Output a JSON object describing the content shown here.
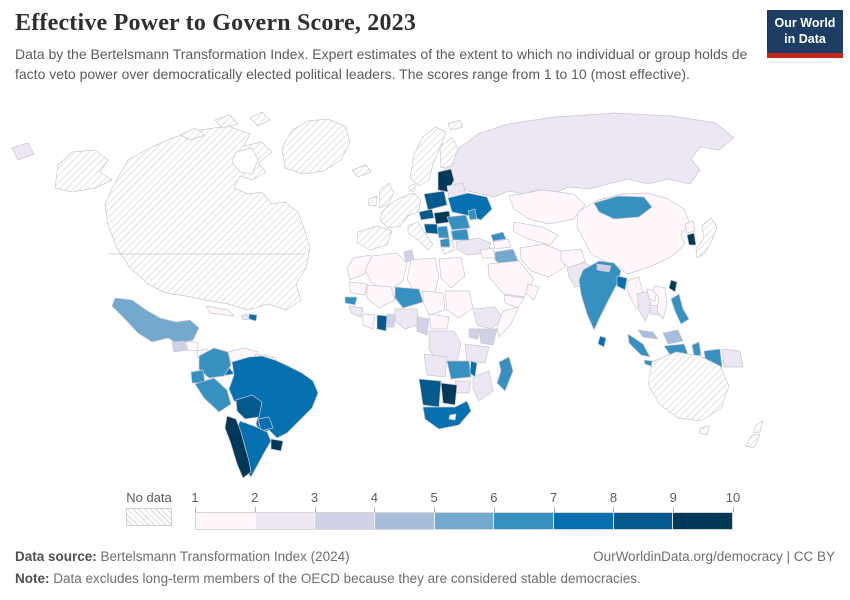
{
  "header": {
    "title": "Effective Power to Govern Score, 2023",
    "subtitle": "Data by the Bertelsmann Transformation Index. Expert estimates of the extent to which no individual or group holds de facto veto power over democratically elected political leaders. The scores range from 1 to 10 (most effective).",
    "logo": {
      "line1": "Our World",
      "line2": "in Data",
      "bg_color": "#1d3d63",
      "accent_color": "#c5261f"
    }
  },
  "legend": {
    "no_data_label": "No data"
  },
  "footer": {
    "source_label": "Data source:",
    "source_text": " Bertelsmann Transformation Index (2024)",
    "right_text": "OurWorldinData.org/democracy | CC BY",
    "note_label": "Note:",
    "note_text": " Data excludes long-term members of the OECD because they are considered stable democracies."
  },
  "chart_data": {
    "type": "choropleth_map",
    "title": "Effective Power to Govern Score",
    "year": 2023,
    "unit": "score (1 to 10, most effective)",
    "scale": {
      "ticks": [
        "1",
        "2",
        "3",
        "4",
        "5",
        "6",
        "7",
        "8",
        "9",
        "10"
      ],
      "no_data_label": "No data",
      "bins": [
        {
          "range": "1-2",
          "color": "#fff7fb"
        },
        {
          "range": "2-3",
          "color": "#ece7f2"
        },
        {
          "range": "3-4",
          "color": "#d0d1e6"
        },
        {
          "range": "4-5",
          "color": "#a6bddb"
        },
        {
          "range": "5-6",
          "color": "#74a9cf"
        },
        {
          "range": "6-7",
          "color": "#3690c0"
        },
        {
          "range": "7-8",
          "color": "#0570b0"
        },
        {
          "range": "8-9",
          "color": "#045a8d"
        },
        {
          "range": "9-10",
          "color": "#023858"
        }
      ],
      "border_color": "#c9c7d1",
      "hatch_color": "#d9d9de"
    },
    "countries": {
      "canada-usa": "no-data",
      "alaska": "no-data",
      "arctic-islands": "no-data",
      "greenland": "no-data",
      "iceland": "no-data",
      "svalbard": "no-data",
      "uk": "no-data",
      "ireland": "no-data",
      "scandinavia": "no-data",
      "finland": "no-data",
      "denmark": "no-data",
      "western-europe": "no-data",
      "iberia": "no-data",
      "italy": "no-data",
      "greece": "no-data",
      "japan": "no-data",
      "australia": "no-data",
      "new-zealand": "no-data",
      "suriname-guiana": "no-data",
      "mexico": "5-6",
      "guatemala": "3-4",
      "honduras": "1-2",
      "nicaragua": "1-2",
      "costa-rica": "9-10",
      "panama": "7-8",
      "cuba": "1-2",
      "haiti": "2-3",
      "dominican-republic": "7-8",
      "colombia": "6-7",
      "venezuela": "1-2",
      "guyana": "1-2",
      "ecuador": "6-7",
      "peru": "6-7",
      "brazil": "7-8",
      "bolivia": "8-9",
      "paraguay": "7-8",
      "chile": "9-10",
      "argentina": "7-8",
      "uruguay": "9-10",
      "baltics": "9-10",
      "poland": "8-9",
      "belarus": "2-3",
      "ukraine": "7-8",
      "czechia": "8-9",
      "slovakia-hungary": "9-10",
      "slovenia-croatia": "8-9",
      "serbia-bosnia": "6-7",
      "albania-macedonia": "6-7",
      "romania": "6-7",
      "bulgaria": "6-7",
      "moldova": "6-7",
      "turkey": "2-3",
      "georgia": "6-7",
      "armenia-azerbaijan": "1-2",
      "russia": "2-3",
      "russia-far-east": "2-3",
      "kazakhstan": "1-2",
      "uzbekistan-turkmenistan": "1-2",
      "syria": "1-2",
      "iraq": "5-6",
      "iran": "1-2",
      "saudi-arabia": "1-2",
      "yemen": "1-2",
      "oman": "1-2",
      "afghanistan": "1-2",
      "pakistan": "2-3",
      "india": "6-7",
      "nepal": "3-4",
      "bangladesh": "7-8",
      "sri-lanka": "7-8",
      "china": "1-2",
      "mongolia": "6-7",
      "north-korea": "1-2",
      "south-korea": "9-10",
      "taiwan": "9-10",
      "myanmar": "1-2",
      "thailand": "2-3",
      "laos": "1-2",
      "cambodia": "2-3",
      "vietnam": "1-2",
      "malaysia": "4-5",
      "indonesia": "6-7",
      "east-timor": "9-10",
      "papua-new-guinea": "2-3",
      "philippines": "6-7",
      "morocco": "1-2",
      "algeria": "1-2",
      "tunisia": "3-4",
      "libya": "1-2",
      "egypt": "1-2",
      "mauritania": "1-2",
      "mali": "1-2",
      "niger": "6-7",
      "chad": "1-2",
      "sudan": "1-2",
      "senegal": "6-7",
      "guinea": "2-3",
      "ivory-coast": "1-2",
      "ghana": "8-9",
      "togo-benin": "3-4",
      "nigeria": "2-3",
      "cameroon": "3-4",
      "central-african-republic": "1-2",
      "ethiopia": "2-3",
      "somalia": "1-2",
      "kenya": "3-4",
      "uganda": "3-4",
      "drc": "2-3",
      "tanzania": "2-3",
      "angola": "2-3",
      "zambia": "6-7",
      "malawi": "7-8",
      "mozambique": "2-3",
      "zimbabwe": "2-3",
      "namibia": "8-9",
      "botswana": "9-10",
      "south-africa": "7-8",
      "lesotho": "1-2",
      "madagascar": "6-7"
    }
  }
}
